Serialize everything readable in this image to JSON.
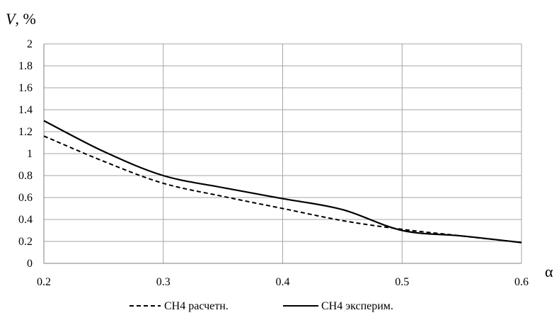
{
  "chart_data": {
    "type": "line",
    "title": "",
    "ylabel_var": "V",
    "ylabel_unit": ", %",
    "xlabel": "α",
    "xlim": [
      0.2,
      0.6
    ],
    "ylim": [
      0,
      2
    ],
    "x_ticks": [
      "0.2",
      "0.3",
      "0.4",
      "0.5",
      "0.6"
    ],
    "y_ticks": [
      "0",
      "0.2",
      "0.4",
      "0.6",
      "0.8",
      "1",
      "1.2",
      "1.4",
      "1.6",
      "1.8",
      "2"
    ],
    "grid": true,
    "legend_position": "bottom",
    "series": [
      {
        "name": "CH4 расчетн.",
        "style": "dashed",
        "color": "#000000",
        "x": [
          0.2,
          0.25,
          0.3,
          0.35,
          0.4,
          0.45,
          0.5,
          0.55,
          0.6
        ],
        "y": [
          1.16,
          0.93,
          0.73,
          0.61,
          0.5,
          0.39,
          0.31,
          0.25,
          0.19
        ]
      },
      {
        "name": "CH4 эксперим.",
        "style": "solid",
        "color": "#000000",
        "x": [
          0.2,
          0.25,
          0.3,
          0.35,
          0.4,
          0.45,
          0.5,
          0.55,
          0.6
        ],
        "y": [
          1.3,
          1.02,
          0.8,
          0.69,
          0.59,
          0.49,
          0.3,
          0.25,
          0.19
        ]
      }
    ]
  }
}
